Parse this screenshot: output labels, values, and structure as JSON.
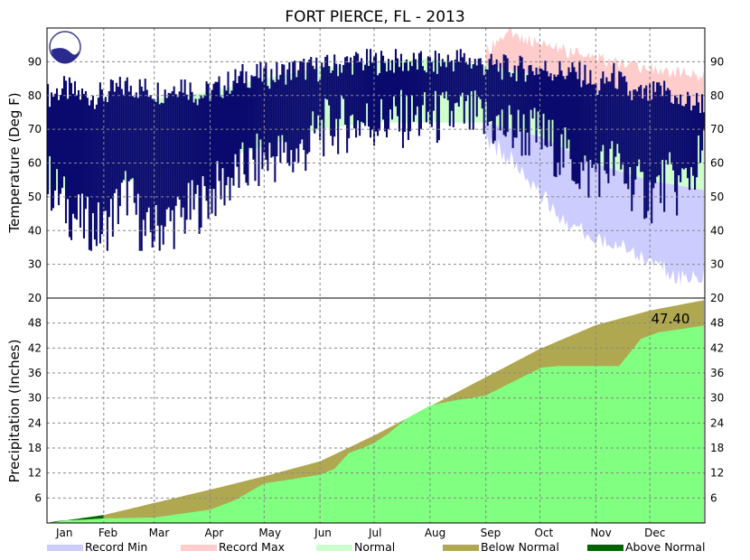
{
  "chart_data": [
    {
      "type": "bar",
      "panel": "temperature",
      "title": "FORT PIERCE, FL - 2013",
      "ylabel": "Temperature (Deg F)",
      "ylim": [
        20,
        100
      ],
      "yticks": [
        30,
        40,
        50,
        60,
        70,
        80,
        90
      ],
      "months": [
        "Jan",
        "Feb",
        "Mar",
        "Apr",
        "May",
        "Jun",
        "Jul",
        "Aug",
        "Sep",
        "Oct",
        "Nov",
        "Dec"
      ],
      "grid": true,
      "logo": "noaa-logo",
      "observed_keypoints": {
        "day": [
          1,
          10,
          20,
          32,
          45,
          55,
          66,
          75,
          85,
          95,
          110,
          125,
          140,
          152,
          170,
          182,
          200,
          213,
          230,
          244,
          258,
          274,
          288,
          300,
          305,
          315,
          325,
          335,
          345,
          350,
          365
        ],
        "high": [
          80,
          82,
          80,
          80,
          83,
          82,
          81,
          84,
          80,
          82,
          86,
          86,
          88,
          88,
          90,
          90,
          90,
          89,
          91,
          89,
          88,
          88,
          87,
          86,
          82,
          86,
          80,
          80,
          82,
          78,
          78
        ],
        "low": [
          55,
          48,
          42,
          40,
          52,
          38,
          42,
          44,
          48,
          52,
          58,
          62,
          62,
          70,
          72,
          72,
          73,
          73,
          74,
          72,
          70,
          68,
          62,
          56,
          58,
          60,
          54,
          50,
          55,
          52,
          62
        ]
      },
      "normal_keypoints": {
        "day": [
          1,
          30,
          60,
          90,
          121,
          151,
          182,
          212,
          243,
          273,
          304,
          334,
          365
        ],
        "high": [
          75,
          76,
          79,
          81,
          85,
          88,
          90,
          91,
          89,
          86,
          81,
          77,
          75
        ],
        "low": [
          52,
          53,
          56,
          60,
          65,
          70,
          72,
          72,
          72,
          68,
          60,
          55,
          52
        ]
      },
      "record_max_keypoints": {
        "day": [
          244,
          255,
          265,
          275,
          290,
          305,
          320,
          335,
          350,
          360
        ],
        "high": [
          93,
          99,
          97,
          95,
          93,
          91,
          89,
          88,
          87,
          86
        ]
      },
      "record_min_keypoints": {
        "day": [
          244,
          255,
          265,
          275,
          285,
          295,
          305,
          315,
          325,
          335,
          345,
          355
        ],
        "low": [
          68,
          62,
          58,
          50,
          45,
          40,
          38,
          36,
          33,
          30,
          28,
          26
        ]
      },
      "colors": {
        "observed": "#0a0a6e",
        "normal": "#ccffcc",
        "record_max": "#ffcccc",
        "record_min": "#ccccff"
      }
    },
    {
      "type": "area",
      "panel": "precipitation",
      "ylabel": "Precipitation (Inches)",
      "ylim": [
        0,
        54
      ],
      "yticks": [
        6,
        12,
        18,
        24,
        30,
        36,
        42,
        48
      ],
      "top_tick_label": "20",
      "grid": true,
      "total_label": "47.40",
      "normal_cumulative": {
        "day": [
          1,
          32,
          60,
          91,
          121,
          152,
          182,
          213,
          244,
          274,
          305,
          335,
          365
        ],
        "value": [
          0,
          1.9,
          4.8,
          8.0,
          11.2,
          14.8,
          21.0,
          28.0,
          35.0,
          41.8,
          47.5,
          51.0,
          53.5
        ]
      },
      "observed_cumulative": {
        "day": [
          1,
          5,
          10,
          20,
          32,
          60,
          91,
          105,
          121,
          135,
          152,
          160,
          168,
          175,
          182,
          190,
          200,
          213,
          225,
          244,
          255,
          265,
          275,
          285,
          295,
          305,
          318,
          330,
          340,
          350,
          365
        ],
        "value": [
          0,
          0.4,
          0.6,
          0.8,
          1.1,
          1.3,
          3.2,
          5.5,
          9.5,
          10.4,
          11.6,
          13.0,
          16.8,
          17.9,
          19.2,
          21.5,
          25.1,
          28.2,
          29.3,
          30.6,
          33.0,
          35.2,
          37.3,
          37.7,
          37.7,
          37.7,
          37.7,
          44.2,
          45.8,
          46.4,
          47.4
        ]
      },
      "colors": {
        "observed": "#80ff80",
        "below_normal": "#b0a850",
        "above_normal": "#006400"
      }
    }
  ],
  "legend": [
    {
      "label": "Record Min",
      "color": "#ccccff"
    },
    {
      "label": "Record Max",
      "color": "#ffcccc"
    },
    {
      "label": "Normal",
      "color": "#ccffcc"
    },
    {
      "label": "Below Normal",
      "color": "#b0a850"
    },
    {
      "label": "Above Normal",
      "color": "#006400"
    }
  ]
}
